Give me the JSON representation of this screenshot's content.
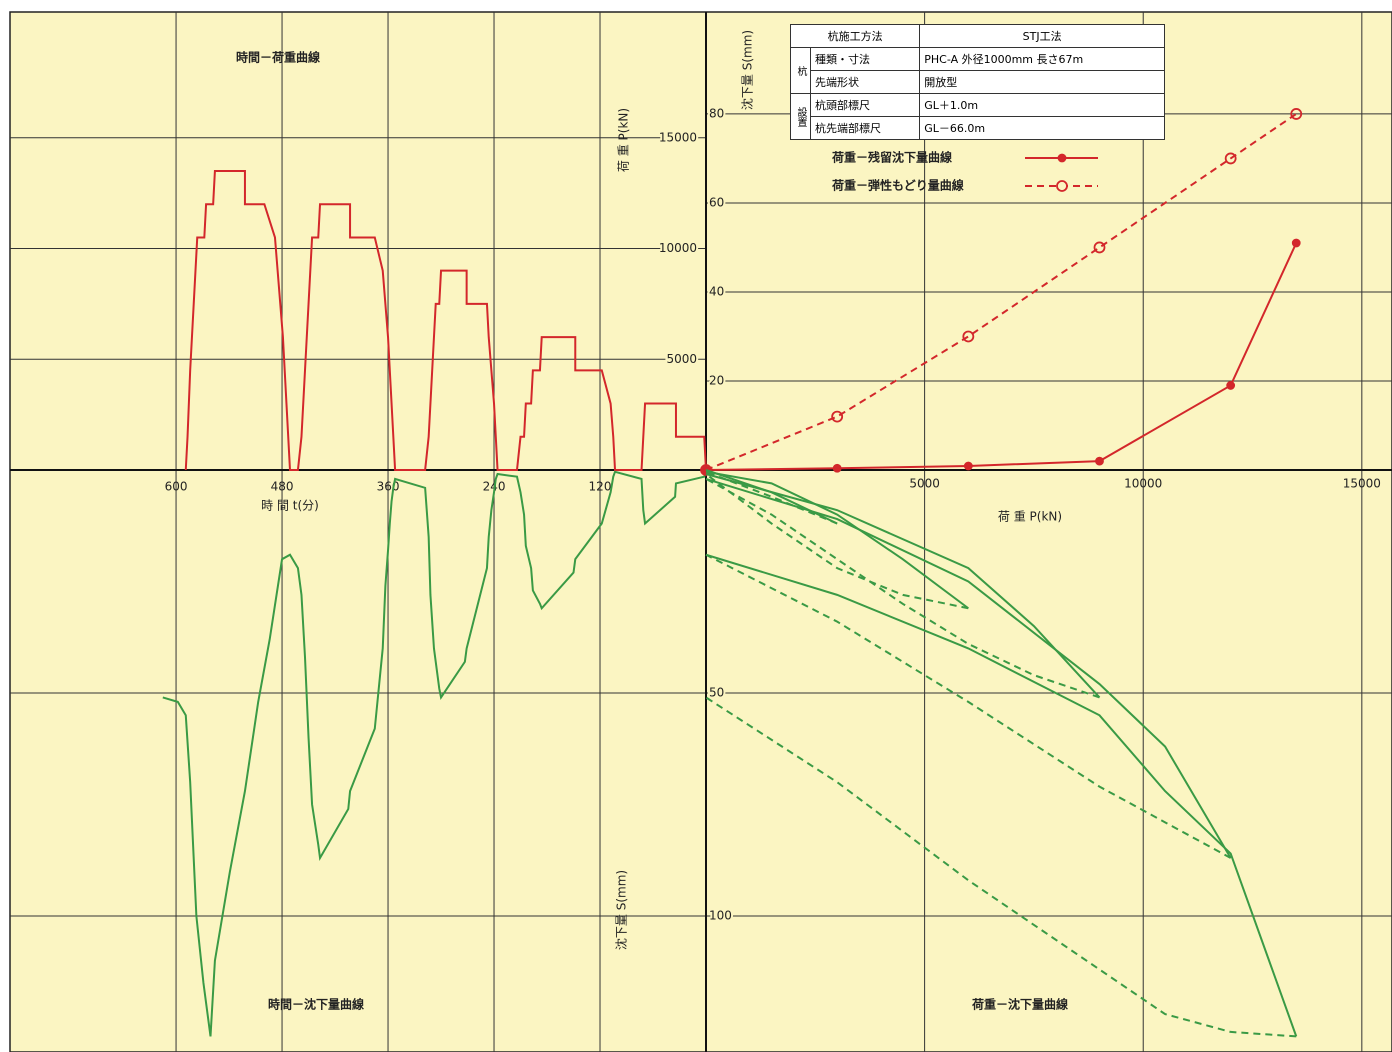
{
  "chart_data": [
    {
      "type": "line",
      "title": "時間－荷重曲線",
      "x_label": "時 間 t(分)",
      "y_label": "荷 重 P(kN)",
      "xlim": [
        788,
        0
      ],
      "ylim": [
        0,
        20680
      ],
      "xticks": [
        600,
        480,
        360,
        240,
        120
      ],
      "yticks": [
        5000,
        10000,
        15000
      ],
      "grid": true,
      "color": "#d3272b",
      "x": [
        0,
        2,
        34,
        34,
        69,
        71,
        73,
        103,
        105,
        108,
        118,
        148,
        148,
        186,
        188,
        196,
        198,
        204,
        206,
        210,
        214,
        236,
        238,
        240,
        243,
        246,
        248,
        271,
        271,
        300,
        302,
        306,
        308,
        310,
        312,
        314,
        318,
        352,
        354,
        356,
        358,
        360,
        363,
        366,
        375,
        403,
        403,
        437,
        439,
        446,
        450,
        454,
        458,
        462,
        471,
        473,
        475,
        477,
        479,
        482,
        485,
        488,
        500,
        522,
        522,
        556,
        558,
        566,
        568,
        576,
        580,
        584,
        587,
        589
      ],
      "values": [
        0,
        1500,
        1500,
        3000,
        3000,
        1500,
        0,
        0,
        1500,
        3000,
        4500,
        4500,
        6000,
        6000,
        4500,
        4500,
        3000,
        3000,
        1500,
        1500,
        0,
        0,
        1500,
        3000,
        4500,
        6000,
        7500,
        7500,
        9000,
        9000,
        7500,
        7500,
        6000,
        4500,
        3000,
        1500,
        0,
        0,
        1500,
        3000,
        4500,
        6000,
        7500,
        9000,
        10500,
        10500,
        12000,
        12000,
        10500,
        10500,
        7500,
        4500,
        1500,
        0,
        0,
        1500,
        3000,
        4500,
        6000,
        7500,
        9000,
        10500,
        12000,
        12000,
        13500,
        13500,
        12000,
        12000,
        10500,
        10500,
        7500,
        4500,
        1500,
        0
      ]
    },
    {
      "type": "line",
      "title": "時間－沈下量曲線",
      "y_label": "沈下量 S(mm)",
      "xlim": [
        788,
        0
      ],
      "ylim": [
        130.5,
        0
      ],
      "color": "#3a9a45",
      "x": [
        0,
        2,
        34,
        35,
        69,
        71,
        73,
        103,
        105,
        108,
        118,
        148,
        150,
        186,
        188,
        196,
        198,
        204,
        206,
        210,
        214,
        236,
        238,
        240,
        243,
        246,
        248,
        271,
        273,
        300,
        302,
        308,
        312,
        314,
        318,
        352,
        354,
        356,
        358,
        360,
        363,
        366,
        375,
        403,
        405,
        437,
        439,
        446,
        450,
        454,
        458,
        462,
        471,
        480,
        494,
        507,
        522,
        539,
        556,
        561,
        569,
        577,
        584,
        589,
        598,
        615
      ],
      "values": [
        0,
        1.5,
        3,
        6,
        12,
        9,
        2,
        0.4,
        1.5,
        5,
        12,
        20,
        23,
        31,
        30,
        27,
        22,
        17,
        10,
        5,
        1.5,
        0.9,
        2,
        5,
        9,
        15,
        22,
        40,
        43,
        51,
        49,
        40,
        28,
        15,
        4,
        2,
        4,
        7,
        12,
        18,
        26,
        40,
        58,
        72,
        76,
        87,
        84,
        75,
        60,
        42,
        28,
        22,
        19,
        20,
        38,
        52,
        72,
        90,
        110,
        127,
        115,
        100,
        70,
        55,
        52,
        51
      ]
    },
    {
      "type": "line",
      "x_label": "荷 重 P(kN)",
      "y_label": "沈下量 S(mm)",
      "xlim": [
        0,
        15690
      ],
      "ylim": [
        0,
        102.9
      ],
      "xticks": [
        5000,
        10000,
        15000
      ],
      "yticks": [
        20,
        40,
        60,
        80
      ],
      "grid": true,
      "x": [
        0,
        3000,
        6000,
        9000,
        12000,
        13500
      ],
      "series": [
        {
          "name": "荷重－残留沈下量曲線",
          "color": "#d3272b",
          "marker": "dot",
          "dash": false,
          "values": [
            0,
            0.4,
            0.9,
            2,
            19,
            51
          ]
        },
        {
          "name": "荷重－弾性もどり量曲線",
          "color": "#d3272b",
          "marker": "circle",
          "dash": true,
          "values": [
            0,
            12,
            30,
            50,
            70,
            80
          ]
        }
      ]
    },
    {
      "type": "line",
      "title": "荷重－沈下量曲線",
      "xlim": [
        0,
        15690
      ],
      "ylim": [
        130.5,
        0
      ],
      "yticks": [
        50,
        100
      ],
      "grid": true,
      "series": [
        {
          "color": "#3a9a45",
          "dash": false,
          "x": [
            0,
            1500,
            3000
          ],
          "values": [
            0,
            5,
            12
          ]
        },
        {
          "color": "#3a9a45",
          "dash": true,
          "x": [
            3000,
            1500,
            0
          ],
          "values": [
            12,
            6,
            0.4
          ]
        },
        {
          "color": "#3a9a45",
          "dash": false,
          "x": [
            0,
            1500,
            3000,
            4500,
            6000
          ],
          "values": [
            0.4,
            3,
            10,
            20,
            31
          ]
        },
        {
          "color": "#3a9a45",
          "dash": true,
          "x": [
            6000,
            4500,
            3000,
            1500,
            0
          ],
          "values": [
            31,
            28,
            22,
            12,
            0.9
          ]
        },
        {
          "color": "#3a9a45",
          "dash": false,
          "x": [
            0,
            3000,
            6000,
            7500,
            9000
          ],
          "values": [
            0.9,
            9,
            22,
            35,
            51
          ]
        },
        {
          "color": "#3a9a45",
          "dash": true,
          "x": [
            9000,
            7500,
            6000,
            4500,
            3000,
            1500,
            0
          ],
          "values": [
            51,
            46,
            39,
            30,
            20,
            10,
            2
          ]
        },
        {
          "color": "#3a9a45",
          "dash": false,
          "x": [
            0,
            3000,
            6000,
            9000,
            10500,
            12000
          ],
          "values": [
            2,
            11,
            25,
            48,
            62,
            87
          ]
        },
        {
          "color": "#3a9a45",
          "dash": true,
          "x": [
            12000,
            10500,
            9000,
            6000,
            3000,
            0
          ],
          "values": [
            87,
            79,
            71,
            52,
            34,
            19
          ]
        },
        {
          "color": "#3a9a45",
          "dash": false,
          "x": [
            0,
            3000,
            6000,
            9000,
            10500,
            12000,
            13500
          ],
          "values": [
            19,
            28,
            40,
            55,
            72,
            86,
            127
          ]
        },
        {
          "color": "#3a9a45",
          "dash": true,
          "x": [
            13500,
            12000,
            10500,
            9000,
            6000,
            3000,
            0
          ],
          "values": [
            127,
            126,
            122,
            112,
            92,
            70,
            51
          ]
        }
      ]
    }
  ],
  "info_table": {
    "method": {
      "item": "杭施工方法",
      "value": "STJ工法"
    },
    "groups": [
      {
        "label": "杭",
        "rows": [
          {
            "item": "種類・寸法",
            "value": "PHC-A 外径1000mm 長さ67m"
          },
          {
            "item": "先端形状",
            "value": "開放型"
          }
        ]
      },
      {
        "label": "設置",
        "rows": [
          {
            "item": "杭頭部標尺",
            "value": "GL＋1.0m"
          },
          {
            "item": "杭先端部標尺",
            "value": "GL－66.0m"
          }
        ]
      }
    ]
  }
}
